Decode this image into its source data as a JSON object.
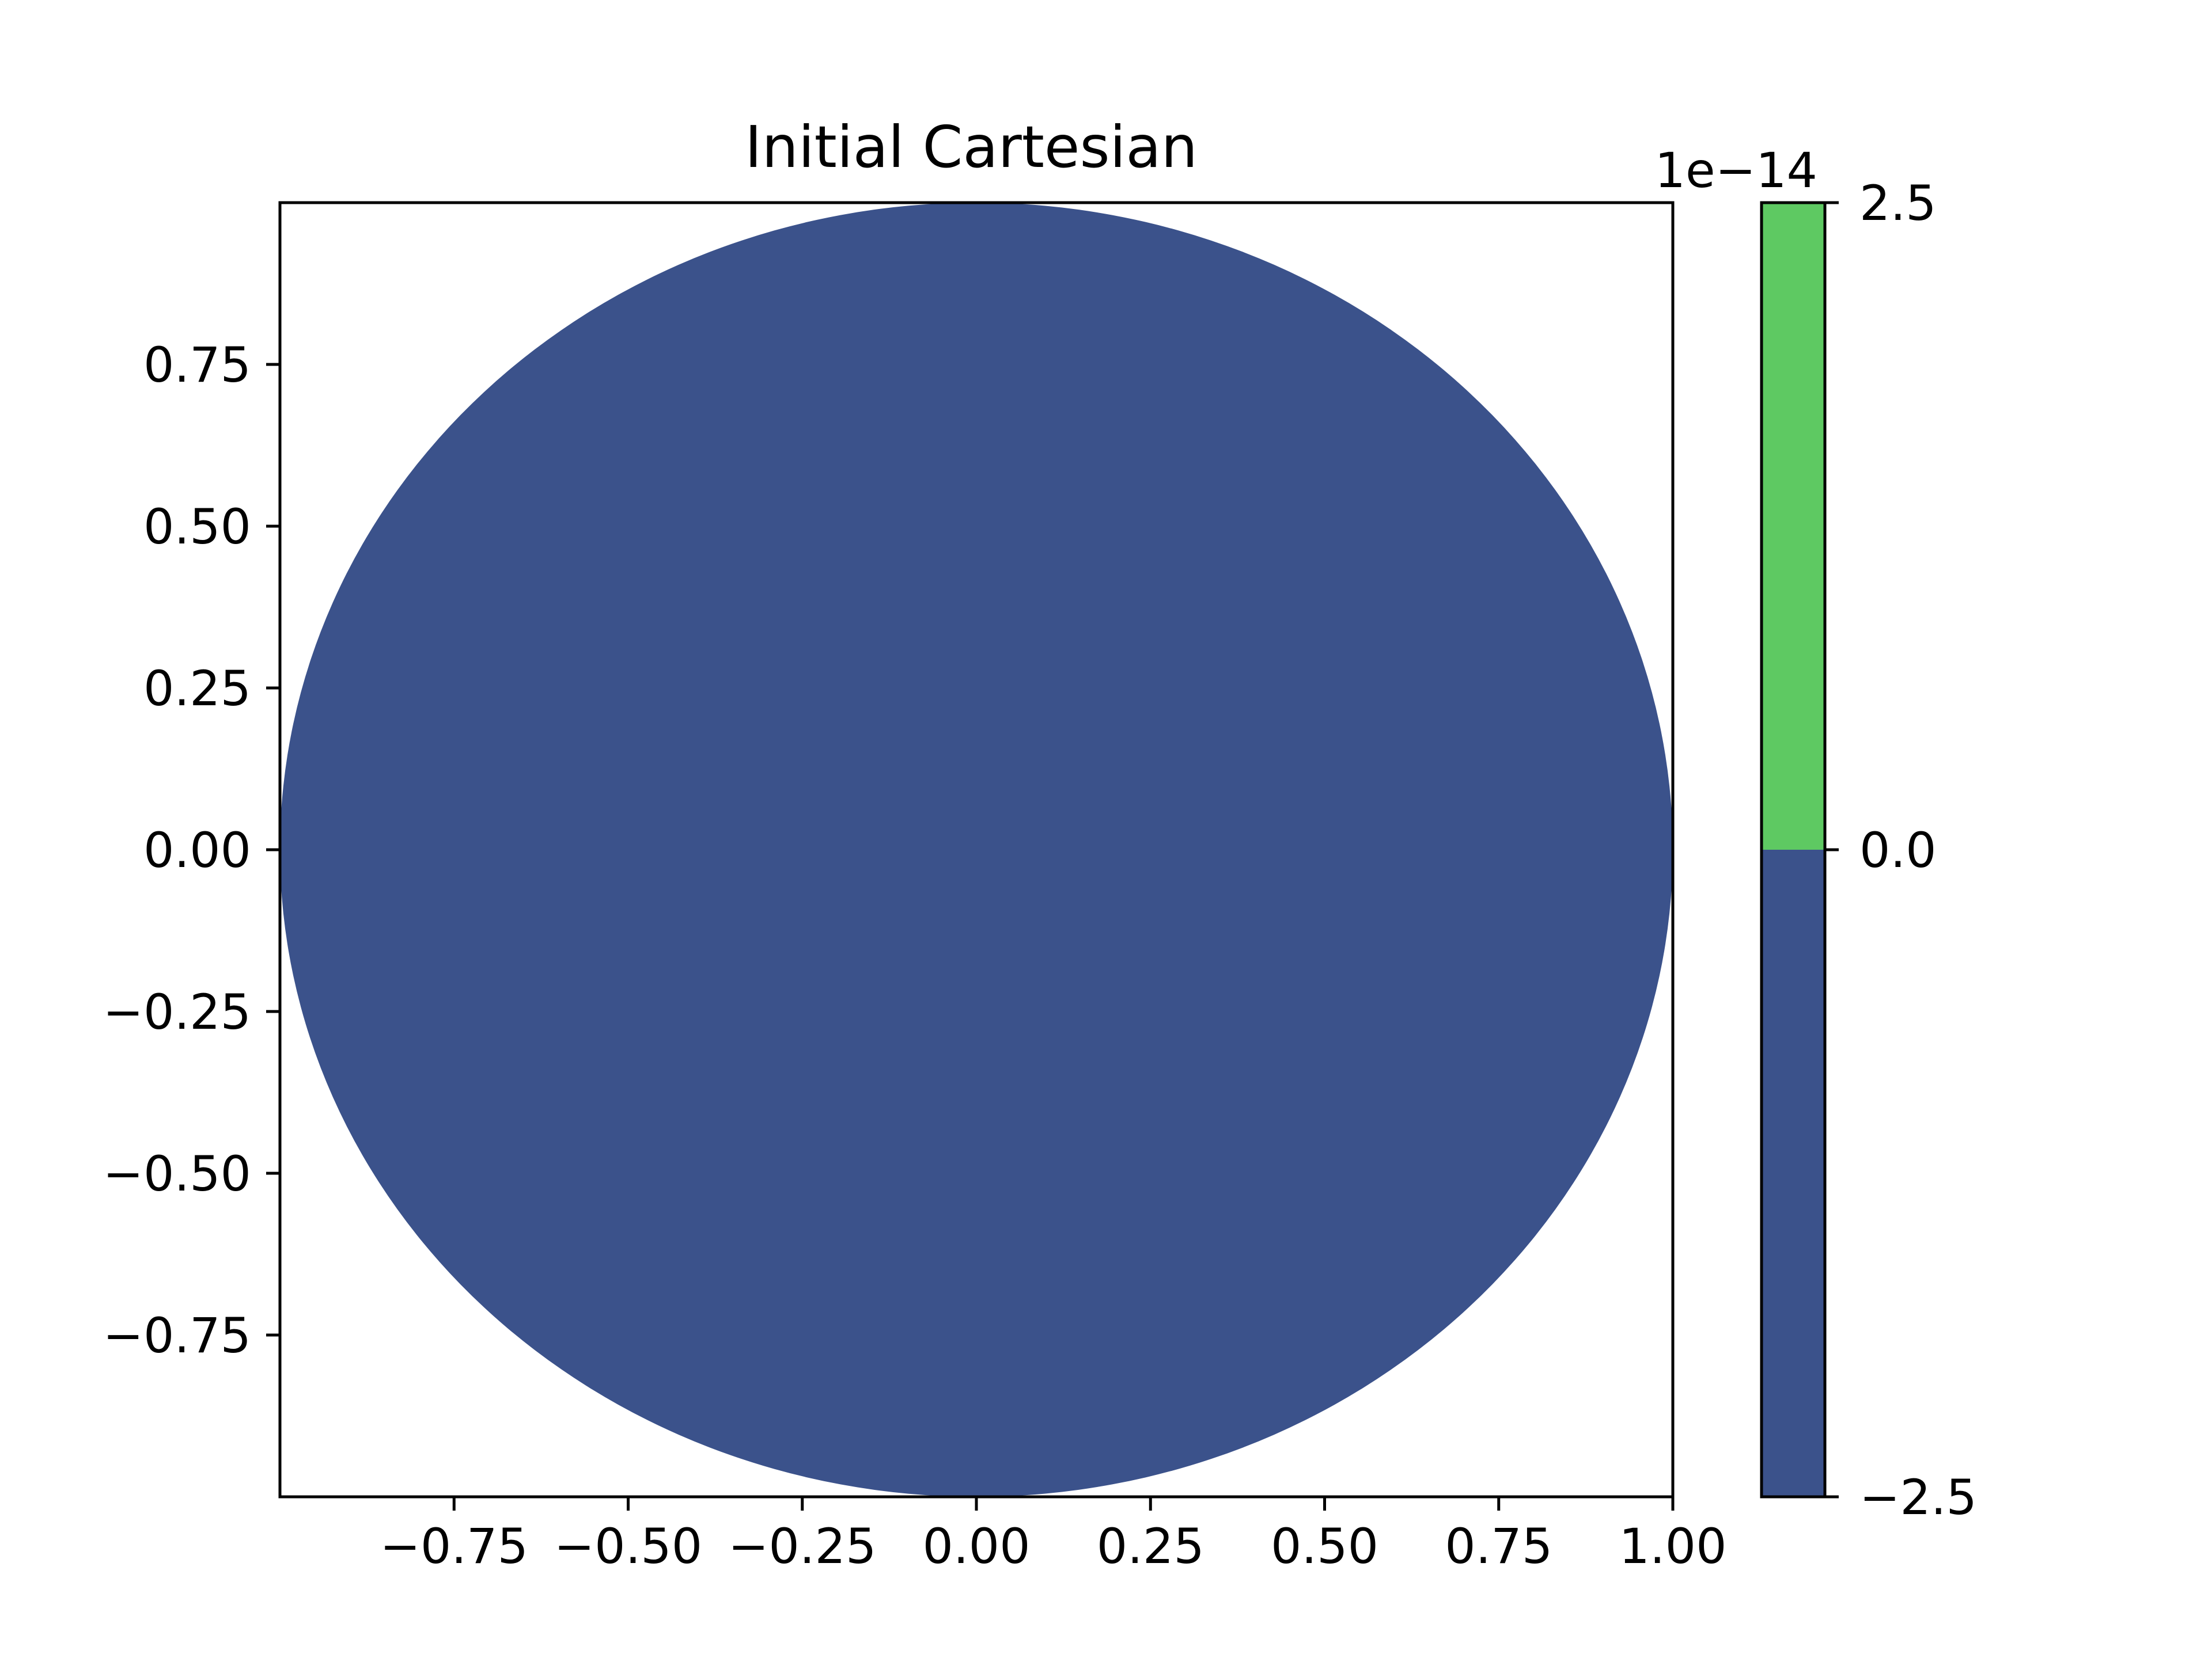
{
  "chart_data": {
    "type": "heatmap",
    "title": "Initial Cartesian",
    "xlabel": "",
    "ylabel": "",
    "xlim": [
      -1.0,
      1.0
    ],
    "ylim": [
      -1.0,
      1.0
    ],
    "x_ticks": [
      -0.75,
      -0.5,
      -0.25,
      0.0,
      0.25,
      0.5,
      0.75,
      1.0
    ],
    "x_tick_labels": [
      "−0.75",
      "−0.50",
      "−0.25",
      "0.00",
      "0.25",
      "0.50",
      "0.75",
      "1.00"
    ],
    "y_ticks": [
      0.75,
      0.5,
      0.25,
      0.0,
      -0.25,
      -0.5,
      -0.75
    ],
    "y_tick_labels": [
      "0.75",
      "0.50",
      "0.25",
      "0.00",
      "−0.25",
      "−0.50",
      "−0.75"
    ],
    "region": {
      "shape": "disk",
      "center": [
        0.0,
        0.0
      ],
      "radius": 1.0,
      "value_band": [
        -2.5e-14,
        0.0
      ],
      "color": "#3b528b"
    },
    "grid": false,
    "colorbar": {
      "offset_label": "1e−14",
      "levels": [
        -2.5,
        0.0,
        2.5
      ],
      "tick_labels": [
        "−2.5",
        "0.0",
        "2.5"
      ],
      "bands": [
        {
          "from": -2.5,
          "to": 0.0,
          "color": "#3b528b"
        },
        {
          "from": 0.0,
          "to": 2.5,
          "color": "#5ec962"
        }
      ]
    }
  }
}
